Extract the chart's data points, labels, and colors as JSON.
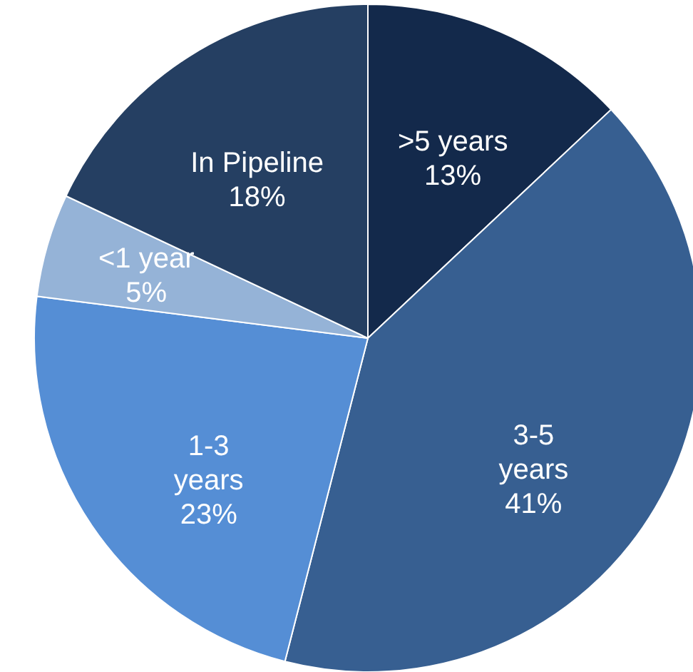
{
  "chart_data": {
    "type": "pie",
    "categories": [
      ">5 years",
      "3-5 years",
      "1-3 years",
      "<1 year",
      "In Pipeline"
    ],
    "values": [
      13,
      41,
      23,
      5,
      18
    ],
    "colors": [
      "#13294b",
      "#375f91",
      "#558ed5",
      "#95b3d7",
      "#253f62"
    ],
    "value_labels": [
      "13%",
      "41%",
      "23%",
      "5%",
      "18%"
    ],
    "legend": false
  }
}
